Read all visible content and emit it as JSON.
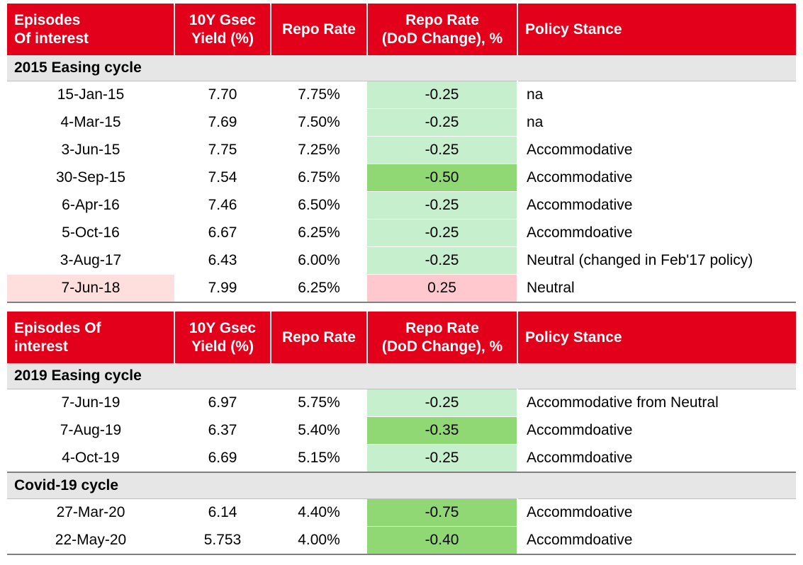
{
  "colors": {
    "header_red": "#e2001a",
    "section_grey": "#e6e6e6",
    "light_green": "#c6efce",
    "medium_green": "#8fd874",
    "light_pink": "#ffc7ce",
    "lighter_pink": "#ffdede"
  },
  "table1": {
    "headers": {
      "episodes": "Episodes\nOf interest",
      "yield": "10Y Gsec\nYield (%)",
      "repo": "Repo Rate",
      "change": "Repo Rate\n(DoD Change), %",
      "stance": "Policy Stance"
    },
    "sections": [
      {
        "title": "2015 Easing cycle",
        "rows": [
          {
            "date": "15-Jan-15",
            "yield": "7.70",
            "repo": "7.75%",
            "change": "-0.25",
            "stance": "na",
            "change_color": "light_green"
          },
          {
            "date": "4-Mar-15",
            "yield": "7.69",
            "repo": "7.50%",
            "change": "-0.25",
            "stance": "na",
            "change_color": "light_green"
          },
          {
            "date": "3-Jun-15",
            "yield": "7.75",
            "repo": "7.25%",
            "change": "-0.25",
            "stance": "Accommodative",
            "change_color": "light_green"
          },
          {
            "date": "30-Sep-15",
            "yield": "7.54",
            "repo": "6.75%",
            "change": "-0.50",
            "stance": "Accommodative",
            "change_color": "medium_green"
          },
          {
            "date": "6-Apr-16",
            "yield": "7.46",
            "repo": "6.50%",
            "change": "-0.25",
            "stance": "Accommodative",
            "change_color": "light_green"
          },
          {
            "date": "5-Oct-16",
            "yield": "6.67",
            "repo": "6.25%",
            "change": "-0.25",
            "stance": "Accommdoative",
            "change_color": "light_green"
          },
          {
            "date": "3-Aug-17",
            "yield": "6.43",
            "repo": "6.00%",
            "change": "-0.25",
            "stance": "Neutral (changed in Feb'17 policy)",
            "change_color": "light_green"
          },
          {
            "date": "7-Jun-18",
            "yield": "7.99",
            "repo": "6.25%",
            "change": "0.25",
            "stance": "Neutral",
            "change_color": "light_pink",
            "date_color": "lighter_pink"
          }
        ]
      }
    ]
  },
  "table2": {
    "headers": {
      "episodes": "Episodes Of\ninterest",
      "yield": "10Y Gsec\nYield (%)",
      "repo": "Repo Rate",
      "change": "Repo Rate\n(DoD Change), %",
      "stance": "Policy Stance"
    },
    "sections": [
      {
        "title": "2019 Easing cycle",
        "rows": [
          {
            "date": "7-Jun-19",
            "yield": "6.97",
            "repo": "5.75%",
            "change": "-0.25",
            "stance": "Accommodative from Neutral",
            "change_color": "light_green"
          },
          {
            "date": "7-Aug-19",
            "yield": "6.37",
            "repo": "5.40%",
            "change": "-0.35",
            "stance": "Accommdoative",
            "change_color": "medium_green"
          },
          {
            "date": "4-Oct-19",
            "yield": "6.69",
            "repo": "5.15%",
            "change": "-0.25",
            "stance": "Accommdoative",
            "change_color": "light_green"
          }
        ]
      },
      {
        "title": "Covid-19 cycle",
        "rows": [
          {
            "date": "27-Mar-20",
            "yield": "6.14",
            "repo": "4.40%",
            "change": "-0.75",
            "stance": "Accommdoative",
            "change_color": "medium_green"
          },
          {
            "date": "22-May-20",
            "yield": "5.753",
            "repo": "4.00%",
            "change": "-0.40",
            "stance": "Accommdoative",
            "change_color": "medium_green"
          }
        ]
      }
    ]
  }
}
